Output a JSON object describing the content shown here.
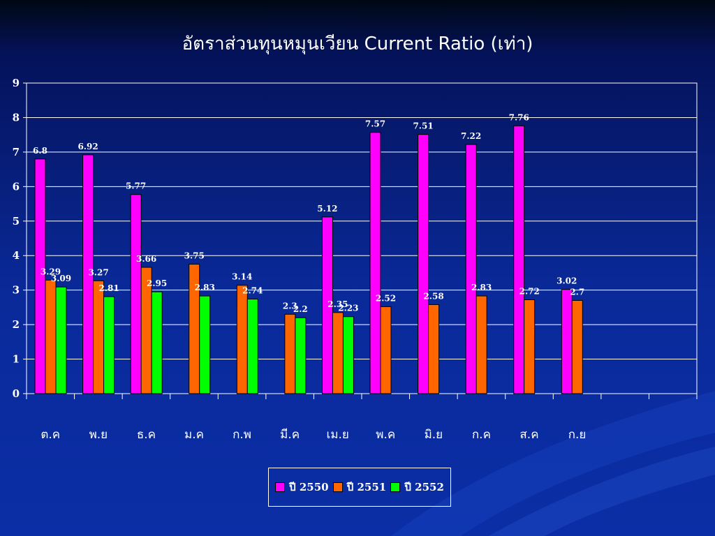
{
  "title": "อัตราส่วนทุนหมุนเวียน Current Ratio (เท่า)",
  "chart_data": {
    "type": "bar",
    "categories": [
      "ต.ค",
      "พ.ย",
      "ธ.ค",
      "ม.ค",
      "ก.พ",
      "มี.ค",
      "เม.ย",
      "พ.ค",
      "มิ.ย",
      "ก.ค",
      "ส.ค",
      "ก.ย",
      "",
      ""
    ],
    "series": [
      {
        "name": "ปี 2550",
        "color": "#ff00ff",
        "values": [
          6.8,
          6.92,
          5.77,
          null,
          null,
          null,
          5.12,
          7.57,
          7.51,
          7.22,
          7.76,
          3.02,
          null,
          null
        ]
      },
      {
        "name": "ปี 2551",
        "color": "#ff6600",
        "values": [
          3.29,
          3.27,
          3.66,
          3.75,
          3.14,
          2.3,
          2.35,
          2.52,
          2.58,
          2.83,
          2.72,
          2.7,
          null,
          null
        ]
      },
      {
        "name": "ปี 2552",
        "color": "#00ff00",
        "values": [
          3.09,
          2.81,
          2.95,
          2.83,
          2.74,
          2.2,
          2.23,
          null,
          null,
          null,
          null,
          null,
          null,
          null
        ]
      }
    ],
    "yticks": [
      "0",
      "1",
      "2",
      "3",
      "4",
      "5",
      "6",
      "7",
      "8",
      "9"
    ],
    "ylim": [
      0,
      9
    ],
    "grid": true,
    "legend_position": "bottom"
  }
}
